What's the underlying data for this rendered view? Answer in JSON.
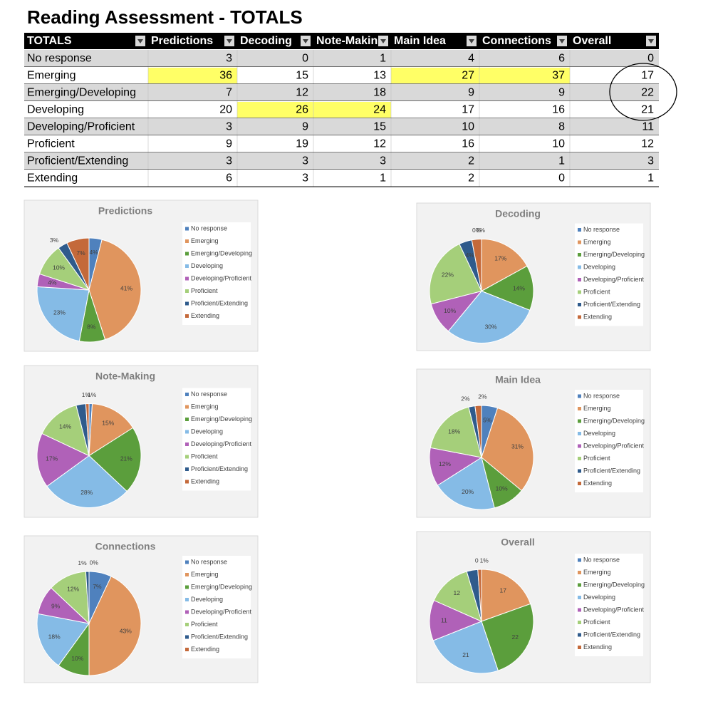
{
  "table": {
    "title": "Reading Assessment - TOTALS",
    "headers": [
      "TOTALS",
      "Predictions",
      "Decoding",
      "Note-Makin",
      "Main Idea",
      "Connections",
      "Overall"
    ],
    "rows": [
      [
        "No response",
        3,
        0,
        1,
        4,
        6,
        0
      ],
      [
        "Emerging",
        36,
        15,
        13,
        27,
        37,
        17
      ],
      [
        "Emerging/Developing",
        7,
        12,
        18,
        9,
        9,
        22
      ],
      [
        "Developing",
        20,
        26,
        24,
        17,
        16,
        21
      ],
      [
        "Developing/Proficient",
        3,
        9,
        15,
        10,
        8,
        11
      ],
      [
        "Proficient",
        9,
        19,
        12,
        16,
        10,
        12
      ],
      [
        "Proficient/Extending",
        3,
        3,
        3,
        2,
        1,
        3
      ],
      [
        "Extending",
        6,
        3,
        1,
        2,
        0,
        1
      ]
    ],
    "highlight_color": "#ffff66",
    "highlighted_cells": [
      [
        1,
        1
      ],
      [
        1,
        4
      ],
      [
        1,
        5
      ],
      [
        3,
        2
      ],
      [
        3,
        3
      ]
    ]
  },
  "chart_data": [
    {
      "type": "pie",
      "title": "Predictions",
      "categories": [
        "No response",
        "Emerging",
        "Emerging/Developing",
        "Developing",
        "Developing/Proficient",
        "Proficient",
        "Proficient/Extending",
        "Extending"
      ],
      "values": [
        4,
        41,
        8,
        23,
        4,
        10,
        3,
        7
      ],
      "value_labels": [
        "4%",
        "41%",
        "8%",
        "23%",
        "4%",
        "10%",
        "3%",
        "7%"
      ],
      "colors": [
        "#4f81bd",
        "#e0955e",
        "#5b9e3c",
        "#85bbe6",
        "#b061b8",
        "#a5cf7a",
        "#2f5b8c",
        "#c4693a"
      ]
    },
    {
      "type": "pie",
      "title": "Decoding",
      "categories": [
        "No response",
        "Emerging",
        "Emerging/Developing",
        "Developing",
        "Developing/Proficient",
        "Proficient",
        "Proficient/Extending",
        "Extending"
      ],
      "values": [
        0,
        17,
        14,
        30,
        10,
        22,
        4,
        3
      ],
      "value_labels": [
        "0%",
        "17%",
        "14%",
        "30%",
        "10%",
        "22%",
        "4%",
        "3%"
      ],
      "colors": [
        "#4f81bd",
        "#e0955e",
        "#5b9e3c",
        "#85bbe6",
        "#b061b8",
        "#a5cf7a",
        "#2f5b8c",
        "#c4693a"
      ]
    },
    {
      "type": "pie",
      "title": "Note-Making",
      "categories": [
        "No response",
        "Emerging",
        "Emerging/Developing",
        "Developing",
        "Developing/Proficient",
        "Proficient",
        "Proficient/Extending",
        "Extending"
      ],
      "values": [
        1,
        15,
        21,
        28,
        17,
        14,
        3,
        1
      ],
      "value_labels": [
        "1%",
        "15%",
        "21%",
        "28%",
        "17%",
        "14%",
        null,
        "1%"
      ],
      "colors": [
        "#4f81bd",
        "#e0955e",
        "#5b9e3c",
        "#85bbe6",
        "#b061b8",
        "#a5cf7a",
        "#2f5b8c",
        "#c4693a"
      ]
    },
    {
      "type": "pie",
      "title": "Main Idea",
      "categories": [
        "No response",
        "Emerging",
        "Emerging/Developing",
        "Developing",
        "Developing/Proficient",
        "Proficient",
        "Proficient/Extending",
        "Extending"
      ],
      "values": [
        5,
        31,
        10,
        20,
        12,
        18,
        2,
        2
      ],
      "value_labels": [
        "5%",
        "31%",
        "10%",
        "20%",
        "12%",
        "18%",
        "2%",
        "2%"
      ],
      "colors": [
        "#4f81bd",
        "#e0955e",
        "#5b9e3c",
        "#85bbe6",
        "#b061b8",
        "#a5cf7a",
        "#2f5b8c",
        "#c4693a"
      ]
    },
    {
      "type": "pie",
      "title": "Connections",
      "categories": [
        "No response",
        "Emerging",
        "Emerging/Developing",
        "Developing",
        "Developing/Proficient",
        "Proficient",
        "Proficient/Extending",
        "Extending"
      ],
      "values": [
        7,
        43,
        10,
        18,
        9,
        12,
        1,
        0
      ],
      "value_labels": [
        "7%",
        "43%",
        "10%",
        "18%",
        "9%",
        "12%",
        "1%",
        "0%"
      ],
      "colors": [
        "#4f81bd",
        "#e0955e",
        "#5b9e3c",
        "#85bbe6",
        "#b061b8",
        "#a5cf7a",
        "#2f5b8c",
        "#c4693a"
      ]
    },
    {
      "type": "pie",
      "title": "Overall",
      "categories": [
        "No response",
        "Emerging",
        "Emerging/Developing",
        "Developing",
        "Developing/Proficient",
        "Proficient",
        "Proficient/Extending",
        "Extending"
      ],
      "values": [
        0,
        17,
        22,
        21,
        11,
        12,
        3,
        1
      ],
      "value_labels": [
        "0",
        "17",
        "22",
        "21",
        "11",
        "12",
        null,
        "1%"
      ],
      "colors": [
        "#4f81bd",
        "#e0955e",
        "#5b9e3c",
        "#85bbe6",
        "#b061b8",
        "#a5cf7a",
        "#2f5b8c",
        "#c4693a"
      ]
    }
  ]
}
